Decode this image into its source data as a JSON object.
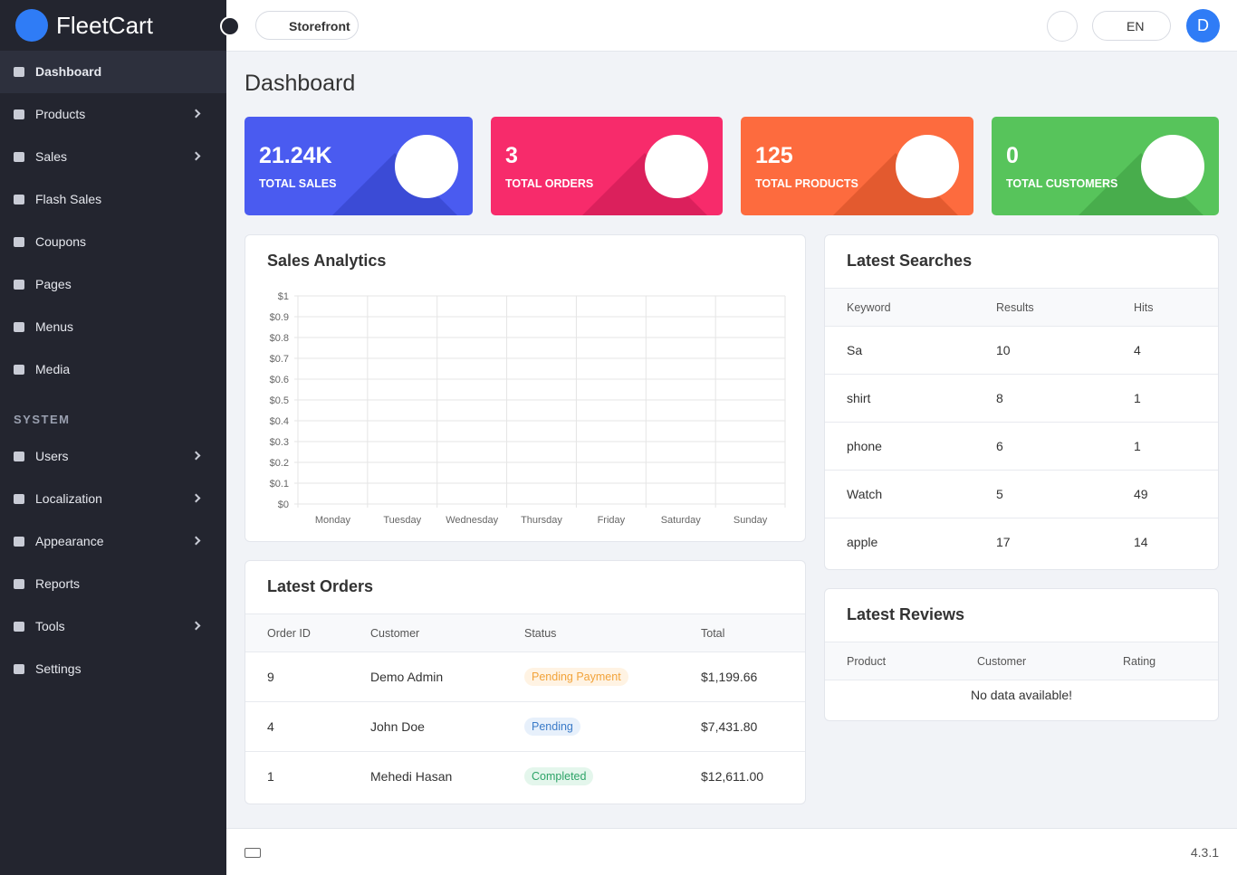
{
  "brand": "FleetCart",
  "sidebar": {
    "items": [
      "Dashboard",
      "Products",
      "Sales",
      "Flash Sales",
      "Coupons",
      "Pages",
      "Menus",
      "Media"
    ],
    "section": "SYSTEM",
    "system_items": [
      "Users",
      "Localization",
      "Appearance",
      "Reports",
      "Tools",
      "Settings"
    ]
  },
  "topbar": {
    "storefront": "Storefront",
    "language": "EN",
    "avatar": "D"
  },
  "page_title": "Dashboard",
  "stats": [
    {
      "value": "21.24K",
      "label": "TOTAL SALES"
    },
    {
      "value": "3",
      "label": "TOTAL ORDERS"
    },
    {
      "value": "125",
      "label": "TOTAL PRODUCTS"
    },
    {
      "value": "0",
      "label": "TOTAL CUSTOMERS"
    }
  ],
  "chart_data": {
    "type": "line",
    "title": "Sales Analytics",
    "categories": [
      "Monday",
      "Tuesday",
      "Wednesday",
      "Thursday",
      "Friday",
      "Saturday",
      "Sunday"
    ],
    "series": [],
    "ylim": [
      0,
      1
    ],
    "yticks": [
      {
        "value": 0,
        "label": "$0"
      },
      {
        "value": 0.1,
        "label": "$0.1"
      },
      {
        "value": 0.2,
        "label": "$0.2"
      },
      {
        "value": 0.3,
        "label": "$0.3"
      },
      {
        "value": 0.4,
        "label": "$0.4"
      },
      {
        "value": 0.5,
        "label": "$0.5"
      },
      {
        "value": 0.6,
        "label": "$0.6"
      },
      {
        "value": 0.7,
        "label": "$0.7"
      },
      {
        "value": 0.8,
        "label": "$0.8"
      },
      {
        "value": 0.9,
        "label": "$0.9"
      },
      {
        "value": 1,
        "label": "$1"
      }
    ],
    "grid": true
  },
  "latest_searches": {
    "title": "Latest Searches",
    "columns": [
      "Keyword",
      "Results",
      "Hits"
    ],
    "rows": [
      [
        "Sa",
        "10",
        "4"
      ],
      [
        "shirt",
        "8",
        "1"
      ],
      [
        "phone",
        "6",
        "1"
      ],
      [
        "Watch",
        "5",
        "49"
      ],
      [
        "apple",
        "17",
        "14"
      ]
    ]
  },
  "latest_orders": {
    "title": "Latest Orders",
    "columns": [
      "Order ID",
      "Customer",
      "Status",
      "Total"
    ],
    "rows": [
      [
        "9",
        "Demo Admin",
        "Pending Payment",
        "$1,199.66"
      ],
      [
        "4",
        "John Doe",
        "Pending",
        "$7,431.80"
      ],
      [
        "1",
        "Mehedi Hasan",
        "Completed",
        "$12,611.00"
      ]
    ]
  },
  "latest_reviews": {
    "title": "Latest Reviews",
    "columns": [
      "Product",
      "Customer",
      "Rating"
    ],
    "empty": "No data available!"
  },
  "footer": {
    "version": "4.3.1"
  }
}
